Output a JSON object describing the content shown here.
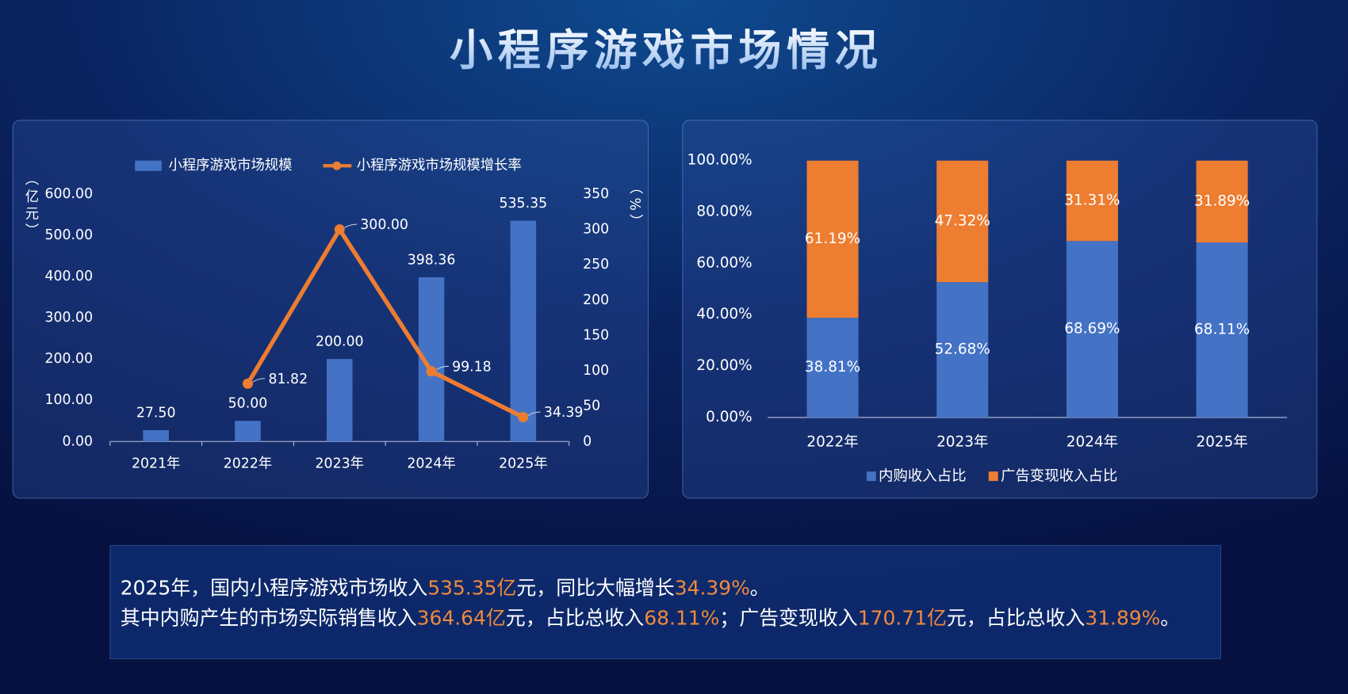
{
  "title": "小程序游戏市场情况",
  "chart_data": [
    {
      "type": "combo",
      "categories": [
        "2021年",
        "2022年",
        "2023年",
        "2024年",
        "2025年"
      ],
      "ylabel": "（亿元）",
      "y2label": "（%）",
      "ylim": [
        0,
        600
      ],
      "yticks": [
        {
          "value": 0,
          "label": "0.00"
        },
        {
          "value": 100,
          "label": "100.00"
        },
        {
          "value": 200,
          "label": "200.00"
        },
        {
          "value": 300,
          "label": "300.00"
        },
        {
          "value": 400,
          "label": "400.00"
        },
        {
          "value": 500,
          "label": "500.00"
        },
        {
          "value": 600,
          "label": "600.00"
        }
      ],
      "y2lim": [
        0,
        350
      ],
      "y2ticks": [
        0,
        50,
        100,
        150,
        200,
        250,
        300,
        350
      ],
      "series": [
        {
          "name": "小程序游戏市场规模",
          "type": "bar",
          "color": "#4472c4",
          "values": [
            27.5,
            50,
            200,
            398.36,
            535.35
          ],
          "value_labels": [
            "27.50",
            "50.00",
            "200.00",
            "398.36",
            "535.35"
          ]
        },
        {
          "name": "小程序游戏市场规模增长率",
          "type": "line",
          "axis": "y2",
          "color": "#ed7d31",
          "values": [
            null,
            81.82,
            300,
            99.18,
            34.39
          ],
          "value_labels": [
            null,
            "81.82",
            "300.00",
            "99.18",
            "34.39"
          ]
        }
      ]
    },
    {
      "type": "stacked",
      "categories": [
        "2022年",
        "2023年",
        "2024年",
        "2025年"
      ],
      "ylim": [
        0,
        100
      ],
      "yticks": [
        {
          "value": 0,
          "label": "0.00%"
        },
        {
          "value": 20,
          "label": "20.00%"
        },
        {
          "value": 40,
          "label": "40.00%"
        },
        {
          "value": 60,
          "label": "60.00%"
        },
        {
          "value": 80,
          "label": "80.00%"
        },
        {
          "value": 100,
          "label": "100.00%"
        }
      ],
      "series": [
        {
          "name": "内购收入占比",
          "color": "#4472c4",
          "values": [
            38.81,
            52.68,
            68.69,
            68.11
          ],
          "value_labels": [
            "38.81%",
            "52.68%",
            "68.69%",
            "68.11%"
          ]
        },
        {
          "name": "广告变现收入占比",
          "color": "#ed7d31",
          "values": [
            61.19,
            47.32,
            31.31,
            31.89
          ],
          "value_labels": [
            "61.19%",
            "47.32%",
            "31.31%",
            "31.89%"
          ]
        }
      ]
    }
  ],
  "summary": [
    [
      {
        "text": "2025年，国内小程序游戏市场收入",
        "accent": false
      },
      {
        "text": "535.35亿",
        "accent": true
      },
      {
        "text": "元，同比大幅增长",
        "accent": false
      },
      {
        "text": "34.39%",
        "accent": true
      },
      {
        "text": "。",
        "accent": false
      }
    ],
    [
      {
        "text": "其中内购产生的市场实际销售收入",
        "accent": false
      },
      {
        "text": "364.64亿",
        "accent": true
      },
      {
        "text": "元，占比总收入",
        "accent": false
      },
      {
        "text": "68.11%",
        "accent": true
      },
      {
        "text": "；广告变现收入",
        "accent": false
      },
      {
        "text": "170.71亿",
        "accent": true
      },
      {
        "text": "元，占比总收入",
        "accent": false
      },
      {
        "text": "31.89%",
        "accent": true
      },
      {
        "text": "。",
        "accent": false
      }
    ]
  ]
}
